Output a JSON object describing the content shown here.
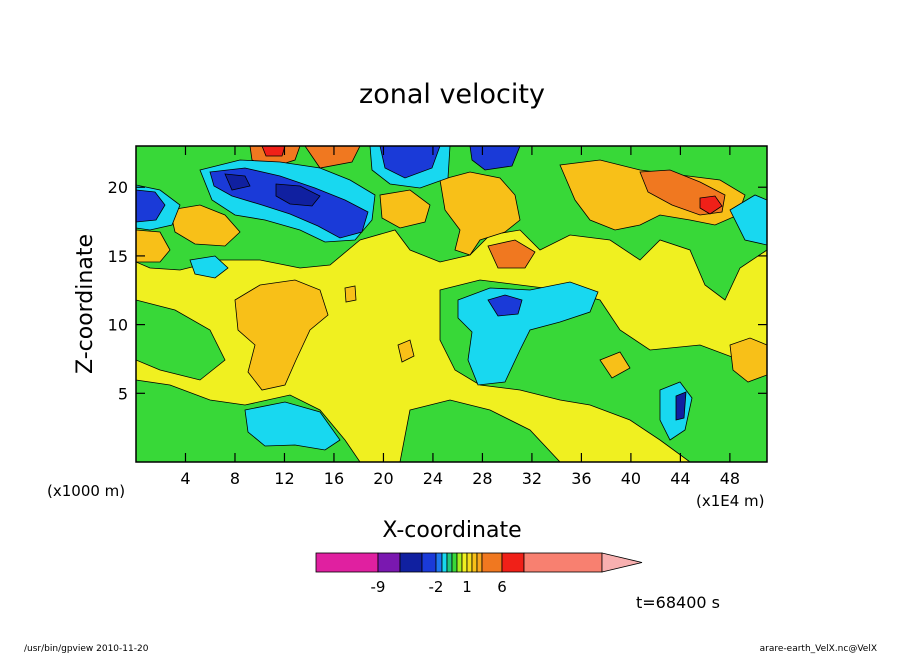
{
  "chart_data": {
    "type": "heatmap",
    "title": "zonal velocity",
    "xlabel": "X-coordinate",
    "ylabel": "Z-coordinate",
    "x_unit_label": "(x1E4 m)",
    "y_unit_label": "(x1000 m)",
    "xlim": [
      0,
      51
    ],
    "ylim": [
      0,
      23
    ],
    "x_ticks": [
      "4",
      "8",
      "12",
      "16",
      "20",
      "24",
      "28",
      "32",
      "36",
      "40",
      "44",
      "48"
    ],
    "x_tick_values": [
      4,
      8,
      12,
      16,
      20,
      24,
      28,
      32,
      36,
      40,
      44,
      48
    ],
    "y_ticks": [
      "5",
      "10",
      "15",
      "20"
    ],
    "y_tick_values": [
      5,
      10,
      15,
      20
    ],
    "grid": false,
    "colorbar": {
      "levels": [
        -12,
        -9,
        -6,
        -4,
        -2,
        -1.5,
        -1,
        -0.5,
        0,
        0.5,
        1,
        1.5,
        2,
        4,
        6,
        8,
        12
      ],
      "labels": [
        "-9",
        "-2",
        "1",
        "6"
      ],
      "label_values": [
        -9,
        -2,
        1,
        6
      ],
      "colors": [
        "#e020a0",
        "#7a18b0",
        "#1020a0",
        "#1a3ad8",
        "#1e78f0",
        "#18d8f0",
        "#20c880",
        "#38d838",
        "#a8ee20",
        "#f0f020",
        "#f6de1e",
        "#f8c018",
        "#f8a820",
        "#f07820",
        "#f02018",
        "#f88070",
        "#f8b0b0"
      ],
      "position": "bottom"
    },
    "regions": [
      {
        "name": "jet-core-negative",
        "x": [
          5,
          18
        ],
        "z": [
          17.5,
          22
        ],
        "value": -6
      },
      {
        "name": "west-edge-negative",
        "x": [
          0,
          2
        ],
        "z": [
          18,
          20
        ],
        "value": -6
      },
      {
        "name": "upper-center-negative",
        "x": [
          21,
          31
        ],
        "z": [
          20.5,
          23
        ],
        "value": -6
      },
      {
        "name": "mid-negative",
        "x": [
          25,
          32
        ],
        "z": [
          8,
          13
        ],
        "value": -2
      },
      {
        "name": "lower-left-negative",
        "x": [
          9,
          15
        ],
        "z": [
          1,
          4
        ],
        "value": -2
      },
      {
        "name": "upper-right-positive",
        "x": [
          39,
          48
        ],
        "z": [
          17,
          22
        ],
        "value": 4
      },
      {
        "name": "mid-left-positive",
        "x": [
          7,
          15
        ],
        "z": [
          6,
          13
        ],
        "value": 1
      },
      {
        "name": "upper-positive",
        "x": [
          22,
          32
        ],
        "z": [
          15,
          21
        ],
        "value": 2
      }
    ]
  },
  "annotations": {
    "time": "t=68400 s"
  },
  "footer": {
    "left": "/usr/bin/gpview  2010-11-20",
    "right": "arare-earth_VelX.nc@VelX"
  }
}
